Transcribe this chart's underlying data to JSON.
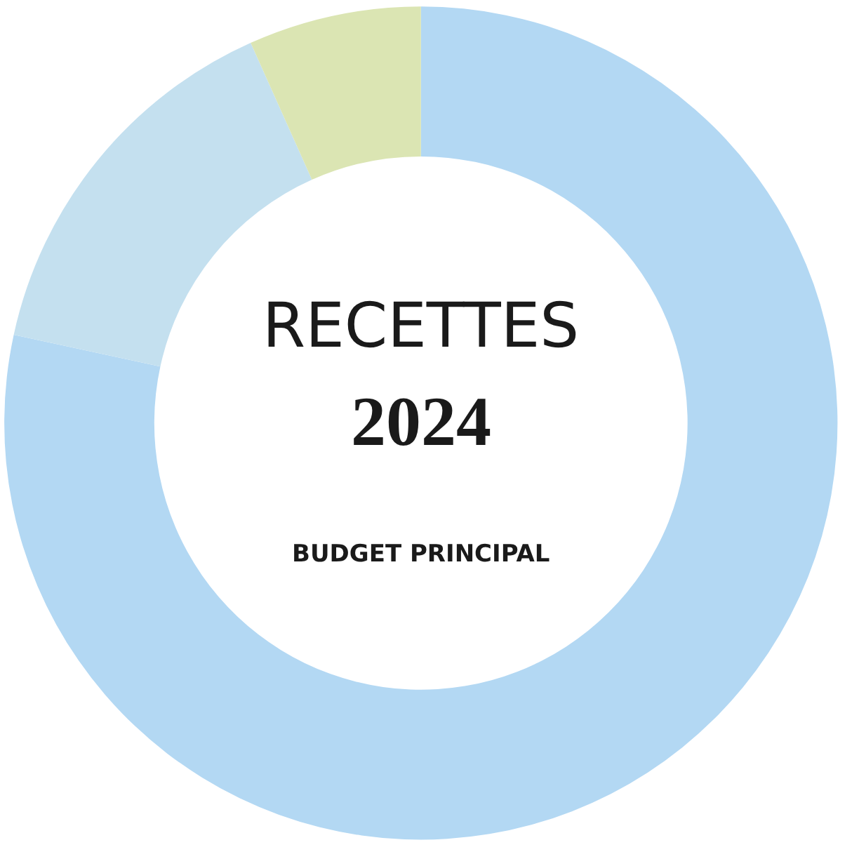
{
  "chart_data": {
    "type": "donut",
    "title": "RECETTES",
    "subtitle": "2024",
    "annotations": [
      "BUDGET PRINCIPAL"
    ],
    "categories": [
      null,
      null,
      null
    ],
    "values": [
      78.4,
      14.9,
      6.7
    ],
    "colors": [
      "#b3d8f3",
      "#c4e0ef",
      "#dbe5b3"
    ],
    "legend": false
  }
}
